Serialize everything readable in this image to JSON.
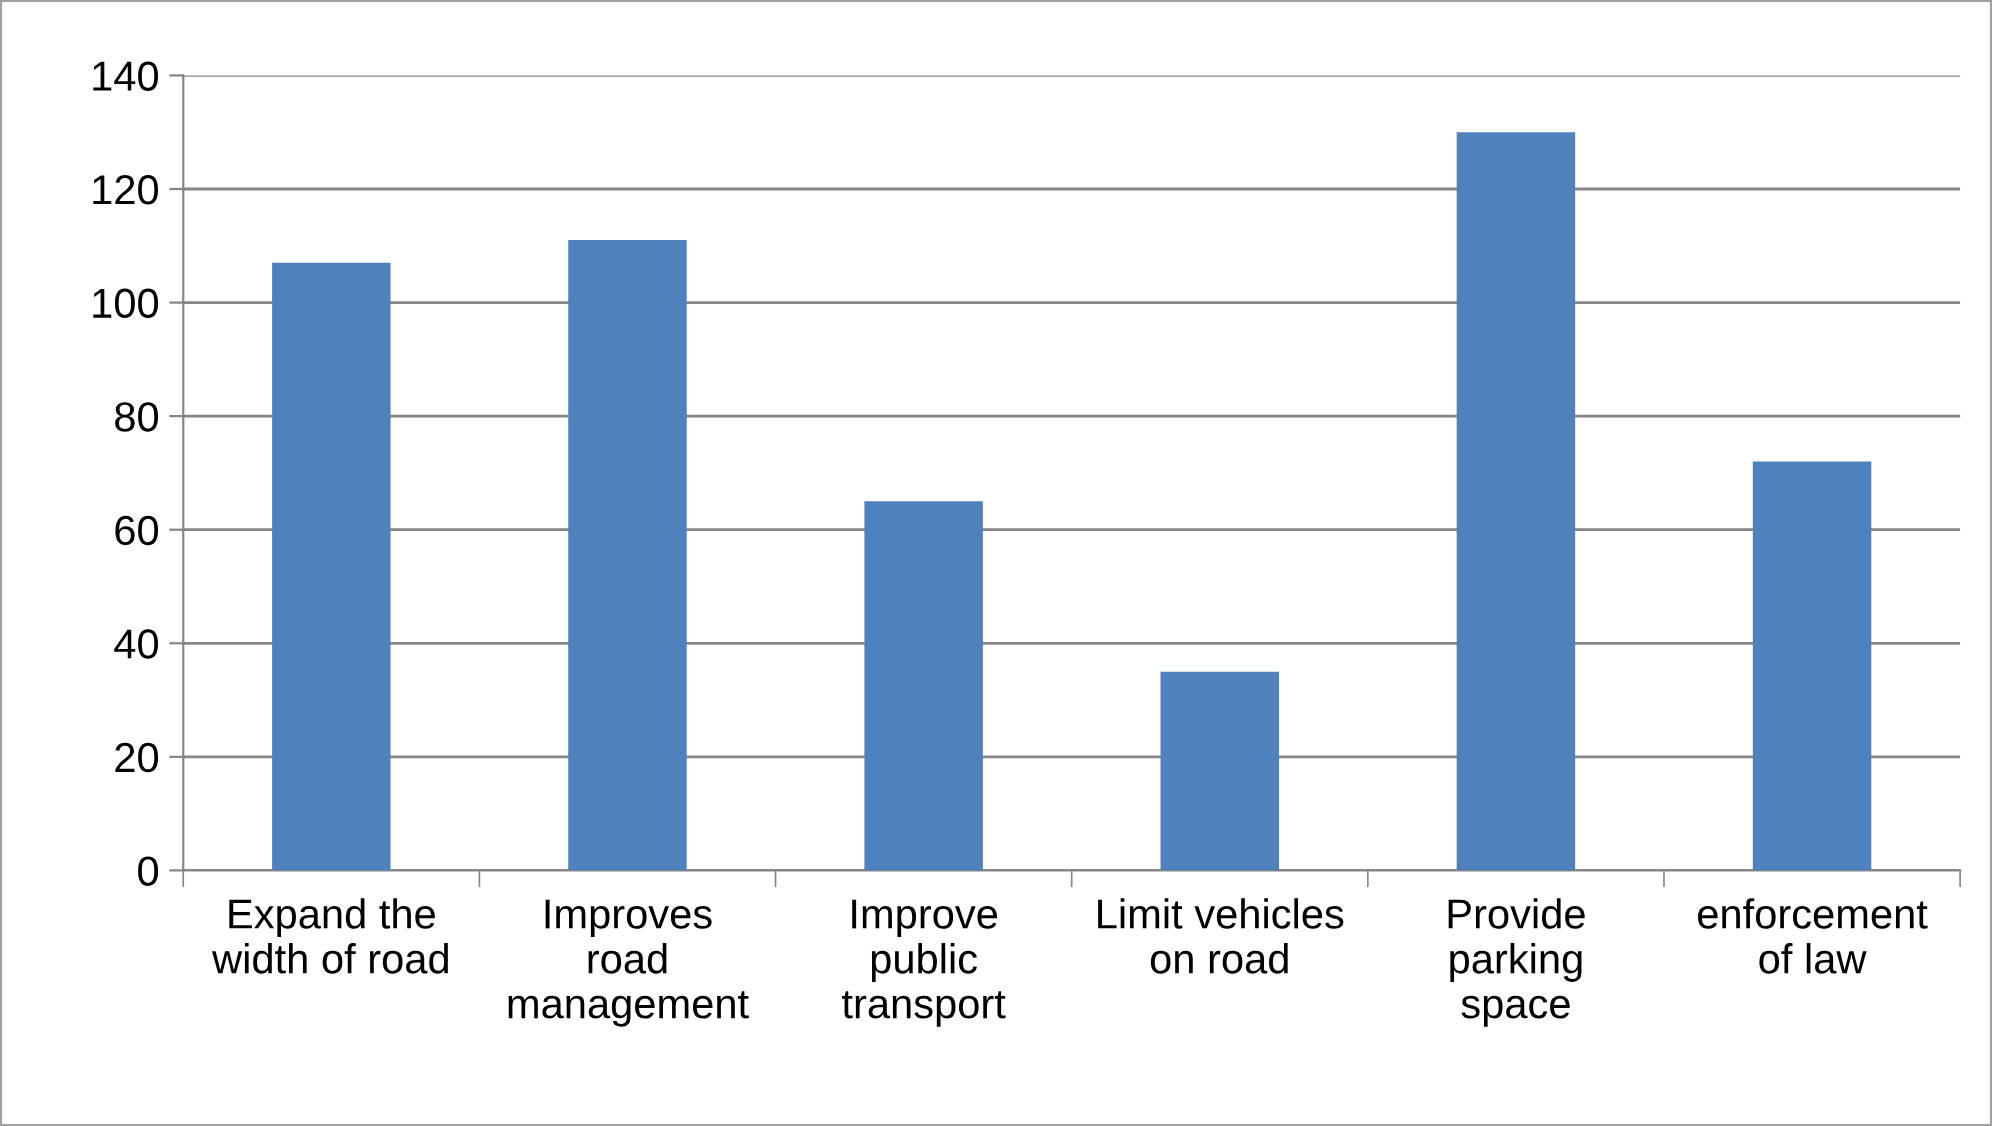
{
  "chart_data": {
    "type": "bar",
    "categories": [
      "Expand the\nwidth of road",
      "Improves\nroad\nmanagement",
      "Improve\npublic\ntransport",
      "Limit vehicles\non road",
      "Provide\nparking\nspace",
      "enforcement\nof law"
    ],
    "values": [
      107,
      111,
      65,
      35,
      130,
      72
    ],
    "color": "#4f81bd",
    "ylim": [
      0,
      140
    ],
    "yticks": [
      0,
      20,
      40,
      60,
      80,
      100,
      120,
      140
    ],
    "grid": "y",
    "legend": false
  }
}
